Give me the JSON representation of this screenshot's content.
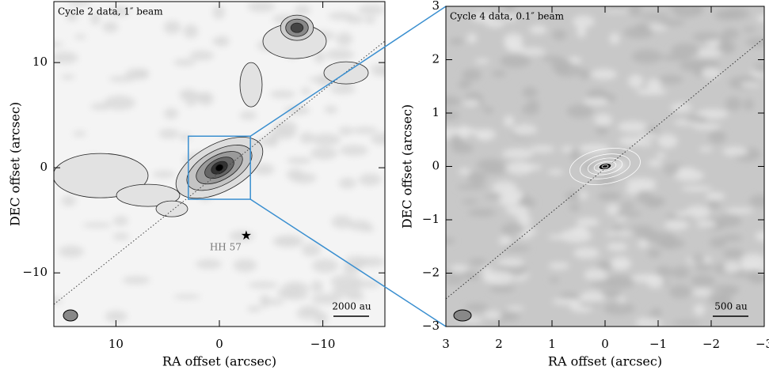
{
  "chart_data": [
    {
      "type": "image",
      "title": "Cycle 2 data, 1″ beam",
      "xlabel": "RA offset (arcsec)",
      "ylabel": "DEC offset (arcsec)",
      "xlim": [
        16,
        -16
      ],
      "ylim": [
        -15.1,
        15.8
      ],
      "xticks": [
        10,
        0,
        {
          "value": -10,
          "label": "−10"
        }
      ],
      "yticks": [
        {
          "value": -10,
          "label": "−10"
        },
        0,
        10
      ],
      "annotations": [
        "2000 au",
        "HH 57"
      ]
    },
    {
      "type": "image",
      "title": "Cycle 4 data, 0.1″ beam",
      "xlabel": "RA offset (arcsec)",
      "ylabel": "DEC offset (arcsec)",
      "xlim": [
        3,
        -3
      ],
      "ylim": [
        -3,
        3
      ],
      "xticks": [
        3,
        2,
        1,
        0,
        {
          "value": -1,
          "label": "−1"
        },
        {
          "value": -2,
          "label": "−2"
        },
        {
          "value": -3,
          "label": "−3"
        }
      ],
      "yticks": [
        {
          "value": -3,
          "label": "−3"
        },
        {
          "value": -2,
          "label": "−2"
        },
        {
          "value": -1,
          "label": "−1"
        },
        0,
        1,
        2,
        3
      ],
      "annotations": [
        "500 au"
      ]
    }
  ]
}
